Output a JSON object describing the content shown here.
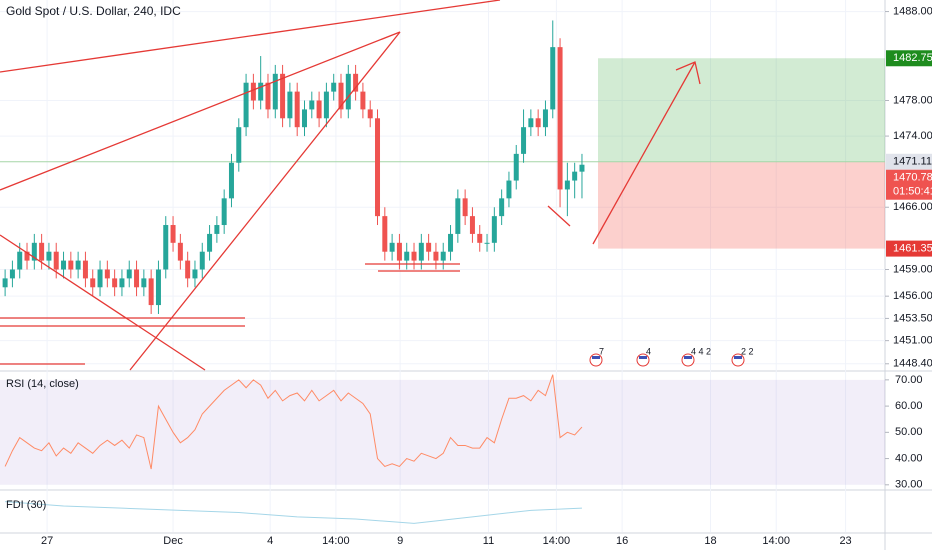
{
  "chart_data": [
    {
      "type": "candlestick",
      "title": "Gold Spot / U.S. Dollar, 240, IDC",
      "open": [
        1457,
        1458,
        1459,
        1461,
        1460,
        1462,
        1460,
        1461,
        1459,
        1460,
        1459,
        1460,
        1458,
        1457,
        1459,
        1458,
        1457,
        1458,
        1459,
        1457,
        1458,
        1455,
        1459,
        1464,
        1462,
        1460,
        1458,
        1459,
        1461,
        1463,
        1464,
        1467,
        1471,
        1475,
        1480,
        1478,
        1480,
        1477,
        1481,
        1476,
        1479,
        1475,
        1477,
        1478,
        1476,
        1479,
        1480,
        1477,
        1481,
        1479,
        1477,
        1476,
        1465,
        1461,
        1462,
        1460,
        1461,
        1460,
        1462,
        1461,
        1460,
        1461,
        1463,
        1467,
        1465,
        1463,
        1462,
        1462,
        1465,
        1467,
        1469,
        1472,
        1475,
        1476,
        1475,
        1477,
        1484,
        1468,
        1469,
        1470
      ],
      "high": [
        1459,
        1460,
        1462,
        1462,
        1463,
        1463,
        1462,
        1462,
        1461,
        1461,
        1461,
        1461,
        1459,
        1460,
        1460,
        1459,
        1459,
        1460,
        1460,
        1459,
        1459,
        1460,
        1465,
        1465,
        1463,
        1461,
        1460,
        1462,
        1464,
        1465,
        1468,
        1472,
        1476,
        1481,
        1481,
        1483,
        1481,
        1482,
        1482,
        1480,
        1480,
        1478,
        1479,
        1479,
        1480,
        1481,
        1481,
        1482,
        1482,
        1480,
        1478,
        1477,
        1466,
        1463,
        1463,
        1462,
        1462,
        1463,
        1463,
        1462,
        1462,
        1464,
        1468,
        1468,
        1466,
        1464,
        1463,
        1466,
        1468,
        1470,
        1473,
        1477,
        1477,
        1477,
        1478,
        1487,
        1485,
        1471,
        1471,
        1472
      ],
      "low": [
        1456,
        1457,
        1458,
        1459,
        1459,
        1459,
        1459,
        1458,
        1458,
        1458,
        1458,
        1457,
        1456,
        1456,
        1457,
        1456,
        1456,
        1457,
        1456,
        1456,
        1454,
        1454,
        1458,
        1461,
        1459,
        1457,
        1457,
        1458,
        1460,
        1462,
        1463,
        1466,
        1470,
        1474,
        1477,
        1477,
        1476,
        1476,
        1475,
        1475,
        1474,
        1474,
        1476,
        1475,
        1475,
        1478,
        1476,
        1476,
        1478,
        1476,
        1475,
        1464,
        1460,
        1460,
        1459,
        1459,
        1459,
        1459,
        1460,
        1459,
        1459,
        1460,
        1462,
        1464,
        1462,
        1461,
        1461,
        1461,
        1464,
        1466,
        1468,
        1471,
        1474,
        1474,
        1474,
        1476,
        1466,
        1465,
        1467,
        1467
      ],
      "close": [
        1458,
        1459,
        1461,
        1460,
        1462,
        1460,
        1461,
        1459,
        1460,
        1459,
        1460,
        1458,
        1457,
        1459,
        1458,
        1457,
        1458,
        1459,
        1457,
        1458,
        1455,
        1459,
        1464,
        1462,
        1460,
        1458,
        1459,
        1461,
        1463,
        1464,
        1467,
        1471,
        1475,
        1480,
        1478,
        1480,
        1477,
        1481,
        1476,
        1479,
        1475,
        1477,
        1478,
        1476,
        1479,
        1480,
        1477,
        1481,
        1479,
        1477,
        1476,
        1465,
        1461,
        1462,
        1460,
        1461,
        1460,
        1462,
        1461,
        1460,
        1461,
        1463,
        1467,
        1465,
        1463,
        1462,
        1462,
        1465,
        1467,
        1469,
        1472,
        1475,
        1476,
        1475,
        1477,
        1484,
        1468,
        1469,
        1470,
        1470.78
      ],
      "up_color": "#26a69a",
      "down_color": "#ef5350",
      "xlim": [
        -0.7,
        120.5
      ],
      "xticks": [
        {
          "value": 5.75,
          "label": "27"
        },
        {
          "value": 23,
          "label": "Dec"
        },
        {
          "value": 36.3,
          "label": "4"
        },
        {
          "value": 45.3,
          "label": "14:00"
        },
        {
          "value": 54.1,
          "label": "9"
        },
        {
          "value": 66.2,
          "label": "11"
        },
        {
          "value": 75.5,
          "label": "14:00"
        },
        {
          "value": 84.5,
          "label": "16"
        },
        {
          "value": 96.6,
          "label": "18"
        },
        {
          "value": 105.6,
          "label": "14:00"
        },
        {
          "value": 115.1,
          "label": "23"
        }
      ],
      "ylim": [
        1447.7,
        1489.3
      ],
      "yticks": [
        {
          "value": 1488,
          "label": "1488.00"
        },
        {
          "value": 1478,
          "label": "1478.00"
        },
        {
          "value": 1474,
          "label": "1474.00"
        },
        {
          "value": 1466,
          "label": "1466.00"
        },
        {
          "value": 1459,
          "label": "1459.00"
        },
        {
          "value": 1456,
          "label": "1456.00"
        },
        {
          "value": 1453.5,
          "label": "1453.50"
        },
        {
          "value": 1451,
          "label": "1451.00"
        },
        {
          "value": 1448.4,
          "label": "1448.40"
        }
      ],
      "position": {
        "target": 1482.75,
        "entry": 1471.11,
        "stop": 1461.35
      },
      "last_price": 1470.78,
      "countdown": "01:50:41",
      "events": [
        "7",
        "4",
        "4 4 2",
        "2 2"
      ]
    },
    {
      "type": "line",
      "title": "RSI (14, close)",
      "color": "#ff8a65",
      "values": [
        37,
        43,
        48,
        46,
        44,
        43,
        46,
        41,
        44,
        42,
        46,
        44,
        42,
        45,
        47,
        45,
        47,
        44,
        49,
        48,
        36,
        60,
        55,
        50,
        46,
        48,
        51,
        57,
        60,
        63,
        66,
        68,
        70,
        67,
        70,
        68,
        63,
        66,
        62,
        64,
        65,
        62,
        66,
        62,
        64,
        66,
        62,
        65,
        63,
        61,
        57,
        40,
        37,
        38,
        37,
        40,
        39,
        42,
        41,
        40,
        42,
        48,
        45,
        45,
        44,
        44,
        48,
        46,
        55,
        63,
        63,
        64,
        62,
        66,
        64,
        72,
        48,
        50,
        49,
        52
      ],
      "ylim": [
        28.4,
        73
      ],
      "yticks": [
        {
          "value": 70,
          "label": "70.00"
        },
        {
          "value": 60,
          "label": "60.00"
        },
        {
          "value": 50,
          "label": "50.00"
        },
        {
          "value": 40,
          "label": "40.00"
        },
        {
          "value": 30,
          "label": "30.00"
        }
      ]
    },
    {
      "type": "line",
      "title": "FDI (30)",
      "color": "#a5d6e8",
      "x": [
        0,
        8,
        16,
        24,
        32,
        40,
        48,
        56,
        64,
        72,
        79
      ],
      "values": [
        1.52,
        1.5,
        1.49,
        1.48,
        1.47,
        1.45,
        1.44,
        1.42,
        1.45,
        1.48,
        1.49
      ],
      "ylim": [
        1.38,
        1.56
      ]
    }
  ]
}
